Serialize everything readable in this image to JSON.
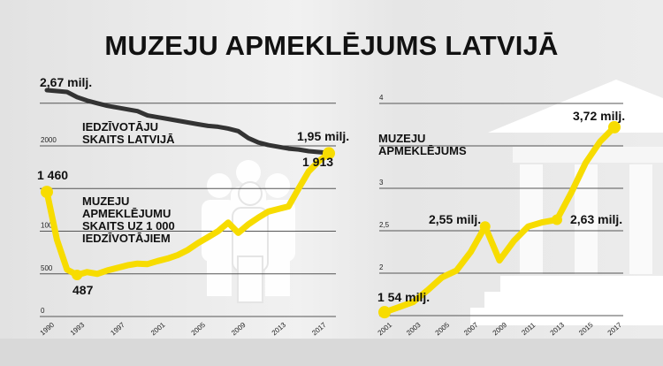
{
  "title": "MUZEJU APMEKLĒJUMS LATVIJĀ",
  "colors": {
    "yellow": "#f7dc00",
    "dark": "#333333",
    "grid": "#555555"
  },
  "chart_data": [
    {
      "type": "line",
      "title": "Iedzīvotāju skaits un muzeju apmeklējumu skaits uz 1 000 iedzīvotājiem",
      "ylim": [
        0,
        2500
      ],
      "yticks": [
        "0",
        "500",
        "1000",
        "2000"
      ],
      "ytick_values": [
        0,
        500,
        1000,
        2000
      ],
      "xticks": [
        "1990",
        "1993",
        "1997",
        "2001",
        "2005",
        "2009",
        "2013",
        "2017"
      ],
      "x": [
        1990,
        1991,
        1992,
        1993,
        1994,
        1995,
        1996,
        1997,
        1998,
        1999,
        2000,
        2001,
        2002,
        2003,
        2004,
        2005,
        2006,
        2007,
        2008,
        2009,
        2010,
        2011,
        2012,
        2013,
        2014,
        2015,
        2016,
        2017,
        2018
      ],
      "series": [
        {
          "name": "IEDZĪVOTĀJU SKAITS LATVIJĀ",
          "unit": "milj.",
          "label_lines": [
            "IEDZĪVOTĀJU",
            "SKAITS LATVIJĀ"
          ],
          "values": [
            2.67,
            2.66,
            2.65,
            2.59,
            2.55,
            2.52,
            2.49,
            2.47,
            2.45,
            2.43,
            2.38,
            2.36,
            2.34,
            2.32,
            2.3,
            2.28,
            2.26,
            2.25,
            2.23,
            2.2,
            2.12,
            2.07,
            2.04,
            2.02,
            2.0,
            1.99,
            1.97,
            1.96,
            1.95
          ],
          "start_label": "2,67 milj.",
          "end_label": "1,95 milj."
        },
        {
          "name": "MUZEJU APMEKLĒJUMU SKAITS UZ 1 000 IEDZĪVOTĀJIEM",
          "label_lines": [
            "MUZEJU",
            "APMEKLĒJUMU",
            "SKAITS UZ 1 000",
            "IEDZĪVOTĀJIEM"
          ],
          "values": [
            1460,
            900,
            550,
            487,
            520,
            500,
            540,
            570,
            600,
            620,
            615,
            650,
            680,
            720,
            780,
            860,
            930,
            1000,
            1100,
            980,
            1080,
            1160,
            1230,
            1260,
            1290,
            1500,
            1700,
            1820,
            1913
          ],
          "start_label": "1 460",
          "min_label": "487",
          "end_label": "1 913"
        }
      ]
    },
    {
      "type": "line",
      "title": "MUZEJU APMEKLĒJUMS",
      "label_lines": [
        "MUZEJU",
        "APMEKLĒJUMS"
      ],
      "ylabel": "milj.",
      "ylim": [
        1.5,
        4
      ],
      "yticks": [
        "2",
        "2,5",
        "3",
        "4"
      ],
      "ytick_values": [
        2,
        2.5,
        3,
        4
      ],
      "xticks": [
        "2001",
        "2003",
        "2005",
        "2007",
        "2009",
        "2011",
        "2013",
        "2015",
        "2017"
      ],
      "x": [
        2001,
        2002,
        2003,
        2004,
        2005,
        2006,
        2007,
        2008,
        2009,
        2010,
        2011,
        2012,
        2013,
        2014,
        2015,
        2016,
        2017
      ],
      "values": [
        1.54,
        1.6,
        1.66,
        1.8,
        1.95,
        2.03,
        2.25,
        2.55,
        2.15,
        2.38,
        2.55,
        2.6,
        2.63,
        2.95,
        3.3,
        3.55,
        3.72
      ],
      "annotations": [
        "1 54 milj.",
        "2,55 milj.",
        "2,63 milj.",
        "3,72 milj."
      ]
    }
  ]
}
